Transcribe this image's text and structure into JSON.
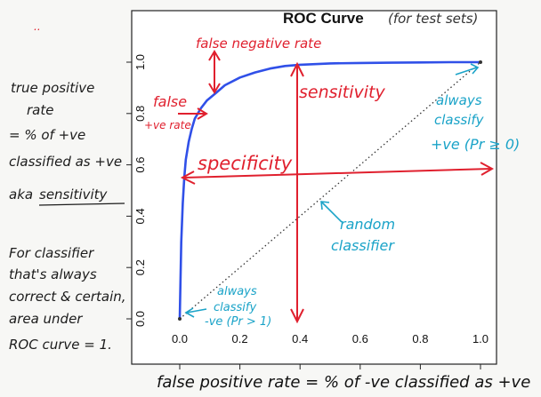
{
  "chart_data": {
    "type": "line",
    "title": "ROC Curve",
    "subtitle": "(for test sets)",
    "xlabel": "false positive rate = % of -ve classified as +ve",
    "ylabel": "",
    "xlim": [
      0,
      1
    ],
    "ylim": [
      0,
      1
    ],
    "x_ticks": [
      "0.0",
      "0.2",
      "0.4",
      "0.6",
      "0.8",
      "1.0"
    ],
    "y_ticks": [
      "0.0",
      "0.2",
      "0.4",
      "0.6",
      "0.8",
      "1.0"
    ],
    "grid": false,
    "series": [
      {
        "color": "#3050e8",
        "style": "solid",
        "x": [
          0.0,
          0.005,
          0.01,
          0.015,
          0.02,
          0.03,
          0.04,
          0.05,
          0.07,
          0.09,
          0.12,
          0.15,
          0.2,
          0.25,
          0.3,
          0.35,
          0.4,
          0.5,
          0.6,
          0.7,
          0.8,
          0.9,
          1.0
        ],
        "y": [
          0.0,
          0.3,
          0.45,
          0.55,
          0.62,
          0.69,
          0.74,
          0.78,
          0.82,
          0.85,
          0.88,
          0.91,
          0.94,
          0.96,
          0.975,
          0.985,
          0.99,
          0.995,
          0.997,
          0.998,
          0.999,
          1.0,
          1.0
        ]
      },
      {
        "color": "#333333",
        "style": "dotted",
        "x": [
          0,
          1
        ],
        "y": [
          0,
          1
        ]
      }
    ]
  },
  "annotations": {
    "left_notes": [
      "true positive",
      "rate",
      "= % of +ve",
      "classified as +ve",
      "aka",
      "sensitivity"
    ],
    "bottom_left_notes": [
      "For classifier",
      "that's always",
      "correct & certain,",
      "area under",
      "ROC curve = 1."
    ],
    "false_negative_rate": "false negative rate",
    "false_positive_rate": [
      "false",
      "+ve rate"
    ],
    "sensitivity": "sensitivity",
    "specificity": "specificity",
    "random_classifier": [
      "random",
      "classifier"
    ],
    "always_positive": [
      "always",
      "classify",
      "+ve (Pr ≥ 0)"
    ],
    "always_negative": [
      "always",
      "classify",
      "-ve (Pr > 1)"
    ],
    "small_mark": ".."
  }
}
